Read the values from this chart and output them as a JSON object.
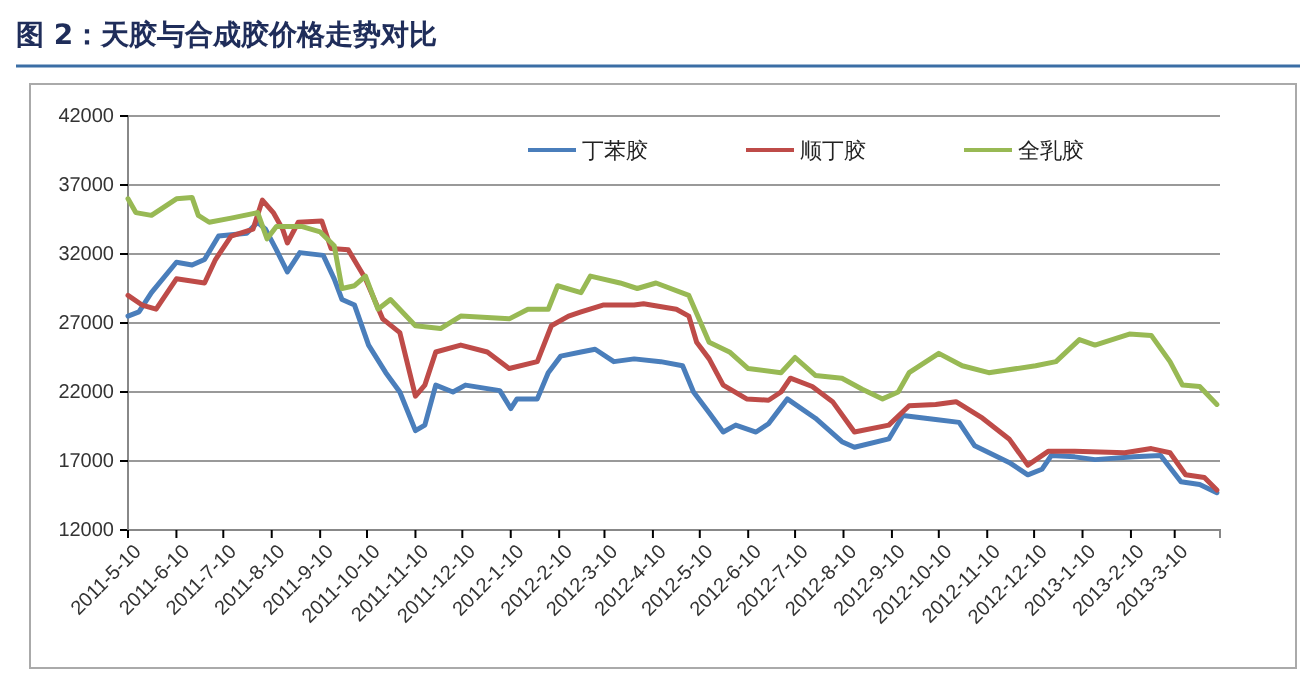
{
  "chart_data": {
    "type": "line",
    "title": "图 2：天胶与合成胶价格走势对比",
    "xlim": [
      "2011-05-10",
      "2013-04-08"
    ],
    "xticks": [
      {
        "value": "2011-05-10",
        "label": "2011-5-10"
      },
      {
        "value": "2011-06-10",
        "label": "2011-6-10"
      },
      {
        "value": "2011-07-10",
        "label": "2011-7-10"
      },
      {
        "value": "2011-08-10",
        "label": "2011-8-10"
      },
      {
        "value": "2011-09-10",
        "label": "2011-9-10"
      },
      {
        "value": "2011-10-10",
        "label": "2011-10-10"
      },
      {
        "value": "2011-11-10",
        "label": "2011-11-10"
      },
      {
        "value": "2011-12-10",
        "label": "2011-12-10"
      },
      {
        "value": "2012-01-10",
        "label": "2012-1-10"
      },
      {
        "value": "2012-02-10",
        "label": "2012-2-10"
      },
      {
        "value": "2012-03-10",
        "label": "2012-3-10"
      },
      {
        "value": "2012-04-10",
        "label": "2012-4-10"
      },
      {
        "value": "2012-05-10",
        "label": "2012-5-10"
      },
      {
        "value": "2012-06-10",
        "label": "2012-6-10"
      },
      {
        "value": "2012-07-10",
        "label": "2012-7-10"
      },
      {
        "value": "2012-08-10",
        "label": "2012-8-10"
      },
      {
        "value": "2012-09-10",
        "label": "2012-9-10"
      },
      {
        "value": "2012-10-10",
        "label": "2012-10-10"
      },
      {
        "value": "2012-11-10",
        "label": "2012-11-10"
      },
      {
        "value": "2012-12-10",
        "label": "2012-12-10"
      },
      {
        "value": "2013-01-10",
        "label": "2013-1-10"
      },
      {
        "value": "2013-02-10",
        "label": "2013-2-10"
      },
      {
        "value": "2013-03-10",
        "label": "2013-3-10"
      }
    ],
    "ylim": [
      12000,
      42000
    ],
    "yticks": [
      12000,
      17000,
      22000,
      27000,
      32000,
      37000,
      42000
    ],
    "grid": "y",
    "legend": "top",
    "series": [
      {
        "name": "丁苯胶",
        "color": "#4a7ebb",
        "x": [
          "2011-05-10",
          "2011-05-17",
          "2011-05-25",
          "2011-06-10",
          "2011-06-20",
          "2011-06-28",
          "2011-07-07",
          "2011-07-25",
          "2011-08-01",
          "2011-08-06",
          "2011-08-13",
          "2011-08-20",
          "2011-08-28",
          "2011-09-12",
          "2011-09-19",
          "2011-09-24",
          "2011-10-02",
          "2011-10-11",
          "2011-10-22",
          "2011-10-31",
          "2011-11-10",
          "2011-11-16",
          "2011-11-23",
          "2011-12-04",
          "2011-12-12",
          "2012-01-03",
          "2012-01-10",
          "2012-01-14",
          "2012-01-27",
          "2012-02-03",
          "2012-02-11",
          "2012-02-24",
          "2012-03-04",
          "2012-03-16",
          "2012-03-29",
          "2012-04-15",
          "2012-04-29",
          "2012-05-06",
          "2012-05-16",
          "2012-05-25",
          "2012-06-02",
          "2012-06-15",
          "2012-06-23",
          "2012-07-05",
          "2012-07-23",
          "2012-08-09",
          "2012-08-17",
          "2012-09-08",
          "2012-09-17",
          "2012-10-08",
          "2012-10-23",
          "2012-11-02",
          "2012-11-24",
          "2012-12-06",
          "2012-12-15",
          "2012-12-21",
          "2013-01-05",
          "2013-01-18",
          "2013-02-12",
          "2013-03-01",
          "2013-03-14",
          "2013-03-26",
          "2013-04-06"
        ],
        "values": [
          27500,
          27800,
          29200,
          31400,
          31200,
          31600,
          33300,
          33500,
          34300,
          33800,
          32300,
          30700,
          32100,
          31900,
          30200,
          28700,
          28300,
          25400,
          23400,
          22000,
          19200,
          19600,
          22500,
          22000,
          22500,
          22100,
          20800,
          21500,
          21500,
          23400,
          24600,
          24900,
          25100,
          24200,
          24400,
          24200,
          23900,
          22000,
          20500,
          19100,
          19600,
          19100,
          19700,
          21500,
          20100,
          18400,
          18000,
          18600,
          20300,
          20000,
          19800,
          18100,
          16900,
          16000,
          16400,
          17400,
          17300,
          17100,
          17300,
          17400,
          15500,
          15300,
          14700
        ]
      },
      {
        "name": "顺丁胶",
        "color": "#be4b48",
        "x": [
          "2011-05-10",
          "2011-05-19",
          "2011-05-28",
          "2011-06-10",
          "2011-06-28",
          "2011-07-05",
          "2011-07-15",
          "2011-07-29",
          "2011-08-04",
          "2011-08-11",
          "2011-08-17",
          "2011-08-20",
          "2011-08-27",
          "2011-09-11",
          "2011-09-17",
          "2011-09-28",
          "2011-10-09",
          "2011-10-20",
          "2011-10-31",
          "2011-11-10",
          "2011-11-16",
          "2011-11-23",
          "2011-12-09",
          "2011-12-26",
          "2012-01-09",
          "2012-01-27",
          "2012-02-05",
          "2012-02-16",
          "2012-02-24",
          "2012-03-09",
          "2012-03-29",
          "2012-04-04",
          "2012-04-25",
          "2012-05-03",
          "2012-05-08",
          "2012-05-16",
          "2012-05-25",
          "2012-06-09",
          "2012-06-23",
          "2012-07-01",
          "2012-07-07",
          "2012-07-21",
          "2012-08-03",
          "2012-08-17",
          "2012-09-08",
          "2012-09-21",
          "2012-10-08",
          "2012-10-21",
          "2012-11-07",
          "2012-11-24",
          "2012-12-06",
          "2012-12-19",
          "2013-01-05",
          "2013-02-06",
          "2013-02-23",
          "2013-03-07",
          "2013-03-17",
          "2013-03-29",
          "2013-04-06"
        ],
        "values": [
          29000,
          28300,
          28000,
          30200,
          29900,
          31600,
          33300,
          33800,
          35900,
          35000,
          33800,
          32800,
          34300,
          34400,
          32400,
          32300,
          30200,
          27300,
          26300,
          21700,
          22500,
          24900,
          25400,
          24900,
          23700,
          24200,
          26800,
          27500,
          27800,
          28300,
          28300,
          28400,
          28000,
          27500,
          25600,
          24400,
          22500,
          21500,
          21400,
          22000,
          23000,
          22400,
          21300,
          19100,
          19600,
          21000,
          21100,
          21300,
          20100,
          18600,
          16700,
          17700,
          17700,
          17600,
          17900,
          17600,
          16000,
          15800,
          14900
        ]
      },
      {
        "name": "全乳胶",
        "color": "#98b954",
        "x": [
          "2011-05-10",
          "2011-05-15",
          "2011-05-25",
          "2011-06-10",
          "2011-06-20",
          "2011-06-24",
          "2011-07-01",
          "2011-07-15",
          "2011-08-01",
          "2011-08-07",
          "2011-08-13",
          "2011-08-29",
          "2011-09-10",
          "2011-09-19",
          "2011-09-24",
          "2011-10-02",
          "2011-10-09",
          "2011-10-17",
          "2011-10-25",
          "2011-11-10",
          "2011-11-26",
          "2011-12-09",
          "2012-01-09",
          "2012-01-21",
          "2012-02-03",
          "2012-02-09",
          "2012-02-24",
          "2012-03-01",
          "2012-03-20",
          "2012-03-31",
          "2012-04-12",
          "2012-05-03",
          "2012-05-16",
          "2012-05-29",
          "2012-06-10",
          "2012-07-01",
          "2012-07-10",
          "2012-07-23",
          "2012-08-09",
          "2012-08-22",
          "2012-09-04",
          "2012-09-14",
          "2012-09-21",
          "2012-10-10",
          "2012-10-25",
          "2012-11-11",
          "2012-12-11",
          "2012-12-24",
          "2013-01-08",
          "2013-01-18",
          "2013-02-09",
          "2013-02-23",
          "2013-03-07",
          "2013-03-15",
          "2013-03-26",
          "2013-04-06"
        ],
        "values": [
          36000,
          35000,
          34800,
          36000,
          36100,
          34800,
          34300,
          34600,
          35000,
          33100,
          34000,
          34000,
          33600,
          32600,
          29500,
          29700,
          30400,
          28000,
          28700,
          26800,
          26600,
          27500,
          27300,
          28000,
          28000,
          29700,
          29200,
          30400,
          29900,
          29500,
          29900,
          29000,
          25600,
          24900,
          23700,
          23400,
          24500,
          23200,
          23000,
          22200,
          21500,
          22000,
          23400,
          24800,
          23900,
          23400,
          23900,
          24200,
          25800,
          25400,
          26200,
          26100,
          24200,
          22500,
          22400,
          21100
        ]
      }
    ]
  }
}
